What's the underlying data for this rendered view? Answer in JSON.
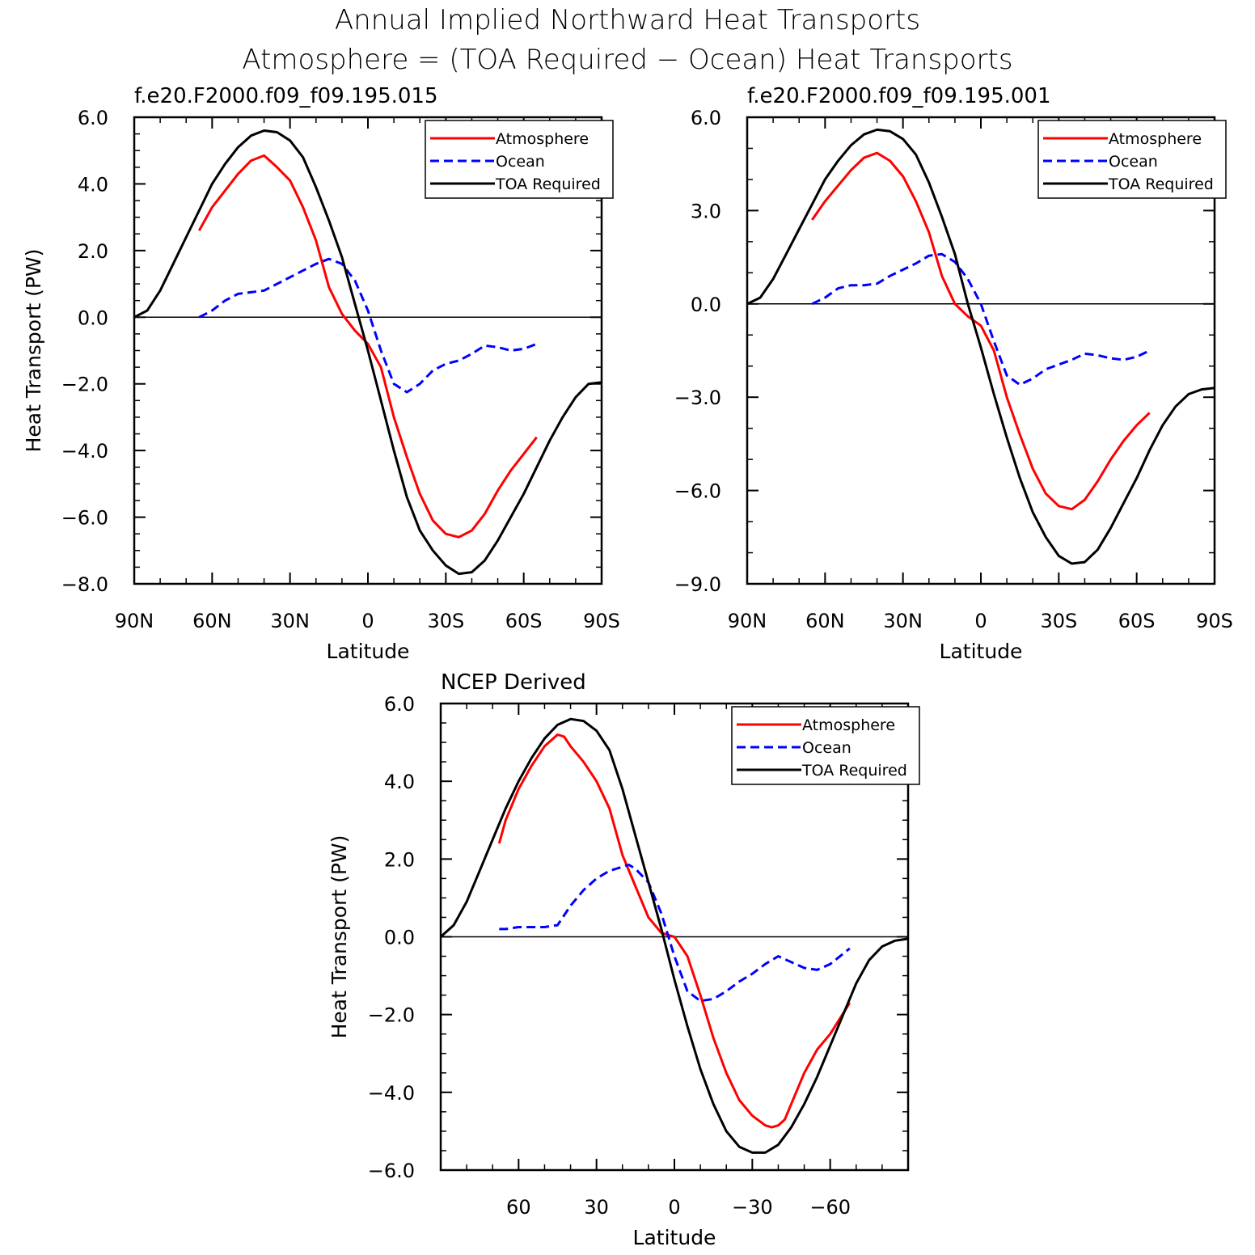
{
  "figure": {
    "title_line1": "Annual Implied Northward Heat Transports",
    "title_line2": "Atmosphere = (TOA Required − Ocean) Heat Transports"
  },
  "colors": {
    "atmosphere": "#ff0000",
    "ocean": "#0000ff",
    "toa": "#000000"
  },
  "chart_data": [
    {
      "type": "line",
      "title": "f.e20.F2000.f09_f09.195.015",
      "xlabel": "Latitude",
      "ylabel": "Heat Transport (PW)",
      "xlim": [
        90,
        -90
      ],
      "ylim": [
        -8,
        6
      ],
      "x_ticks": [
        90,
        60,
        30,
        0,
        -30,
        -60,
        -90
      ],
      "x_tick_labels": [
        "90N",
        "60N",
        "30N",
        "0",
        "30S",
        "60S",
        "90S"
      ],
      "y_ticks": [
        6,
        4,
        2,
        0,
        -2,
        -4,
        -6,
        -8
      ],
      "y_tick_labels": [
        "6.0",
        "4.0",
        "2.0",
        "0.0",
        "−2.0",
        "−4.0",
        "−6.0",
        "−8.0"
      ],
      "x_minor_step": 10,
      "y_minor_step": 0.5,
      "legend": {
        "position": "top-right",
        "entries": [
          "Atmosphere",
          "Ocean",
          "TOA Required"
        ]
      },
      "series": [
        {
          "name": "Atmosphere",
          "color": "#ff0000",
          "dash": "solid",
          "x": [
            65,
            60,
            55,
            50,
            45,
            40,
            35,
            30,
            25,
            20,
            15,
            10,
            5,
            0,
            -5,
            -10,
            -15,
            -20,
            -25,
            -30,
            -35,
            -40,
            -45,
            -50,
            -55,
            -60,
            -65
          ],
          "y": [
            2.6,
            3.3,
            3.8,
            4.3,
            4.7,
            4.85,
            4.5,
            4.1,
            3.3,
            2.3,
            0.9,
            0.1,
            -0.4,
            -0.8,
            -1.5,
            -3.0,
            -4.2,
            -5.3,
            -6.1,
            -6.5,
            -6.6,
            -6.4,
            -5.9,
            -5.2,
            -4.6,
            -4.1,
            -3.6
          ]
        },
        {
          "name": "Ocean",
          "color": "#0000ff",
          "dash": "dashed",
          "x": [
            65,
            60,
            55,
            50,
            45,
            40,
            35,
            30,
            25,
            20,
            15,
            10,
            5,
            0,
            -5,
            -10,
            -15,
            -20,
            -25,
            -30,
            -35,
            -40,
            -45,
            -50,
            -55,
            -60,
            -65
          ],
          "y": [
            0.0,
            0.2,
            0.5,
            0.7,
            0.75,
            0.8,
            1.0,
            1.2,
            1.4,
            1.6,
            1.75,
            1.6,
            1.1,
            0.2,
            -1.0,
            -2.0,
            -2.25,
            -2.0,
            -1.6,
            -1.4,
            -1.3,
            -1.1,
            -0.85,
            -0.9,
            -1.0,
            -0.95,
            -0.8
          ]
        },
        {
          "name": "TOA Required",
          "color": "#000000",
          "dash": "solid",
          "x": [
            90,
            85,
            80,
            75,
            70,
            65,
            60,
            55,
            50,
            45,
            40,
            35,
            30,
            25,
            20,
            15,
            10,
            5,
            0,
            -5,
            -10,
            -15,
            -20,
            -25,
            -30,
            -35,
            -40,
            -45,
            -50,
            -55,
            -60,
            -65,
            -70,
            -75,
            -80,
            -85,
            -90
          ],
          "y": [
            0.0,
            0.2,
            0.8,
            1.6,
            2.4,
            3.2,
            4.0,
            4.6,
            5.1,
            5.45,
            5.6,
            5.55,
            5.3,
            4.8,
            3.9,
            2.9,
            1.8,
            0.4,
            -1.0,
            -2.5,
            -4.0,
            -5.4,
            -6.4,
            -7.0,
            -7.45,
            -7.7,
            -7.65,
            -7.3,
            -6.7,
            -6.0,
            -5.3,
            -4.5,
            -3.7,
            -3.0,
            -2.4,
            -2.0,
            -1.95
          ]
        }
      ]
    },
    {
      "type": "line",
      "title": "f.e20.F2000.f09_f09.195.001",
      "xlabel": "Latitude",
      "ylabel": "",
      "xlim": [
        90,
        -90
      ],
      "ylim": [
        -9,
        6
      ],
      "x_ticks": [
        90,
        60,
        30,
        0,
        -30,
        -60,
        -90
      ],
      "x_tick_labels": [
        "90N",
        "60N",
        "30N",
        "0",
        "30S",
        "60S",
        "90S"
      ],
      "y_ticks": [
        6,
        3,
        0,
        -3,
        -6,
        -9
      ],
      "y_tick_labels": [
        "6.0",
        "3.0",
        "0.0",
        "−3.0",
        "−6.0",
        "−9.0"
      ],
      "x_minor_step": 10,
      "y_minor_step": 1,
      "legend": {
        "position": "top-right",
        "entries": [
          "Atmosphere",
          "Ocean",
          "TOA Required"
        ]
      },
      "series": [
        {
          "name": "Atmosphere",
          "color": "#ff0000",
          "dash": "solid",
          "x": [
            65,
            60,
            55,
            50,
            45,
            40,
            35,
            30,
            25,
            20,
            15,
            10,
            5,
            0,
            -5,
            -10,
            -15,
            -20,
            -25,
            -30,
            -35,
            -40,
            -45,
            -50,
            -55,
            -60,
            -65
          ],
          "y": [
            2.7,
            3.3,
            3.8,
            4.3,
            4.7,
            4.85,
            4.6,
            4.1,
            3.3,
            2.3,
            0.9,
            0.0,
            -0.4,
            -0.7,
            -1.5,
            -3.0,
            -4.2,
            -5.3,
            -6.1,
            -6.5,
            -6.6,
            -6.3,
            -5.7,
            -5.0,
            -4.4,
            -3.9,
            -3.5
          ]
        },
        {
          "name": "Ocean",
          "color": "#0000ff",
          "dash": "dashed",
          "x": [
            65,
            60,
            55,
            50,
            45,
            40,
            35,
            30,
            25,
            20,
            15,
            10,
            5,
            0,
            -5,
            -10,
            -15,
            -20,
            -25,
            -30,
            -35,
            -40,
            -45,
            -50,
            -55,
            -60,
            -65
          ],
          "y": [
            0.0,
            0.2,
            0.5,
            0.6,
            0.6,
            0.65,
            0.9,
            1.1,
            1.3,
            1.55,
            1.6,
            1.35,
            0.8,
            0.0,
            -1.2,
            -2.3,
            -2.6,
            -2.4,
            -2.1,
            -1.95,
            -1.8,
            -1.6,
            -1.65,
            -1.75,
            -1.8,
            -1.7,
            -1.5
          ]
        },
        {
          "name": "TOA Required",
          "color": "#000000",
          "dash": "solid",
          "x": [
            90,
            85,
            80,
            75,
            70,
            65,
            60,
            55,
            50,
            45,
            40,
            35,
            30,
            25,
            20,
            15,
            10,
            5,
            0,
            -5,
            -10,
            -15,
            -20,
            -25,
            -30,
            -35,
            -40,
            -45,
            -50,
            -55,
            -60,
            -65,
            -70,
            -75,
            -80,
            -85,
            -90
          ],
          "y": [
            0.0,
            0.2,
            0.8,
            1.6,
            2.4,
            3.2,
            4.0,
            4.6,
            5.1,
            5.45,
            5.6,
            5.55,
            5.3,
            4.8,
            3.9,
            2.8,
            1.6,
            0.0,
            -1.4,
            -2.9,
            -4.3,
            -5.6,
            -6.7,
            -7.5,
            -8.1,
            -8.35,
            -8.3,
            -7.9,
            -7.2,
            -6.4,
            -5.6,
            -4.7,
            -3.9,
            -3.3,
            -2.9,
            -2.75,
            -2.7
          ]
        }
      ]
    },
    {
      "type": "line",
      "title": "NCEP Derived",
      "xlabel": "Latitude",
      "ylabel": "Heat Transport (PW)",
      "xlim": [
        90,
        -90
      ],
      "ylim": [
        -6,
        6
      ],
      "x_ticks": [
        60,
        30,
        0,
        -30,
        -60
      ],
      "x_tick_labels": [
        "60",
        "30",
        "0",
        "−30",
        "−60"
      ],
      "y_ticks": [
        6,
        4,
        2,
        0,
        -2,
        -4,
        -6
      ],
      "y_tick_labels": [
        "6.0",
        "4.0",
        "2.0",
        "0.0",
        "−2.0",
        "−4.0",
        "−6.0"
      ],
      "x_minor_step": 10,
      "y_minor_step": 0.5,
      "legend": {
        "position": "top-right",
        "entries": [
          "Atmosphere",
          "Ocean",
          "TOA Required"
        ]
      },
      "series": [
        {
          "name": "Atmosphere",
          "color": "#ff0000",
          "dash": "solid",
          "x": [
            67.5,
            65,
            60,
            55,
            50,
            45,
            42.5,
            40,
            35,
            30,
            25,
            20,
            15,
            10,
            5,
            0,
            -5,
            -10,
            -15,
            -20,
            -25,
            -30,
            -35,
            -37.5,
            -40,
            -42.5,
            -45,
            -50,
            -55,
            -60,
            -67.5
          ],
          "y": [
            2.4,
            3.0,
            3.8,
            4.4,
            4.9,
            5.2,
            5.15,
            4.9,
            4.5,
            4.0,
            3.3,
            2.1,
            1.3,
            0.5,
            0.1,
            0.0,
            -0.5,
            -1.5,
            -2.6,
            -3.5,
            -4.2,
            -4.6,
            -4.85,
            -4.9,
            -4.85,
            -4.7,
            -4.3,
            -3.5,
            -2.9,
            -2.5,
            -1.7
          ]
        },
        {
          "name": "Ocean",
          "color": "#0000ff",
          "dash": "dashed",
          "x": [
            67.5,
            65,
            60,
            55,
            50,
            45,
            40,
            35,
            30,
            25,
            20,
            17.5,
            15,
            10,
            5,
            0,
            -5,
            -10,
            -15,
            -20,
            -25,
            -30,
            -35,
            -40,
            -45,
            -50,
            -55,
            -60,
            -67.5
          ],
          "y": [
            0.2,
            0.2,
            0.25,
            0.25,
            0.25,
            0.3,
            0.8,
            1.2,
            1.5,
            1.7,
            1.8,
            1.85,
            1.75,
            1.4,
            0.6,
            -0.5,
            -1.4,
            -1.65,
            -1.6,
            -1.4,
            -1.15,
            -0.95,
            -0.7,
            -0.5,
            -0.65,
            -0.8,
            -0.85,
            -0.7,
            -0.3
          ]
        },
        {
          "name": "TOA Required",
          "color": "#000000",
          "dash": "solid",
          "x": [
            90,
            85,
            80,
            75,
            70,
            65,
            60,
            55,
            50,
            45,
            40,
            35,
            30,
            25,
            20,
            15,
            10,
            5,
            0,
            -5,
            -10,
            -15,
            -20,
            -25,
            -30,
            -35,
            -40,
            -45,
            -50,
            -55,
            -60,
            -65,
            -70,
            -75,
            -80,
            -85,
            -90
          ],
          "y": [
            0.0,
            0.3,
            0.9,
            1.7,
            2.5,
            3.3,
            4.0,
            4.6,
            5.1,
            5.45,
            5.6,
            5.55,
            5.3,
            4.8,
            3.8,
            2.6,
            1.4,
            0.2,
            -1.1,
            -2.3,
            -3.4,
            -4.3,
            -5.0,
            -5.4,
            -5.55,
            -5.55,
            -5.35,
            -4.9,
            -4.3,
            -3.6,
            -2.8,
            -2.0,
            -1.2,
            -0.6,
            -0.25,
            -0.1,
            -0.05
          ]
        }
      ]
    }
  ]
}
